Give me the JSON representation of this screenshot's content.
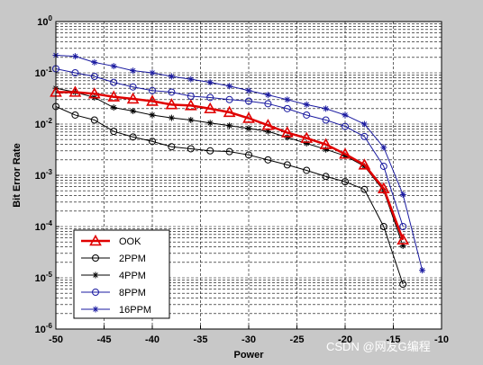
{
  "watermark": "CSDN @网友G编程",
  "chart_data": {
    "type": "line",
    "xlabel": "Power",
    "ylabel": "Bit Error Rate",
    "xlim": [
      -50,
      -10
    ],
    "ylim": [
      1e-06,
      1
    ],
    "y_scale": "log",
    "grid": "major solid, minor dashed",
    "legend_position": "bottom-left",
    "x_ticks": [
      -50,
      -45,
      -40,
      -35,
      -30,
      -25,
      -20,
      -15,
      -10
    ],
    "x_tick_labels": [
      "-50",
      "-45",
      "-40",
      "-35",
      "-30",
      "-25",
      "-20",
      "-15",
      "-10"
    ],
    "y_ticks": [
      {
        "value": 1,
        "base": "10",
        "exp": "0"
      },
      {
        "value": 0.1,
        "base": "10",
        "exp": "-1"
      },
      {
        "value": 0.01,
        "base": "10",
        "exp": "-2"
      },
      {
        "value": 0.001,
        "base": "10",
        "exp": "-3"
      },
      {
        "value": 0.0001,
        "base": "10",
        "exp": "-4"
      },
      {
        "value": 1e-05,
        "base": "10",
        "exp": "-5"
      },
      {
        "value": 1e-06,
        "base": "10",
        "exp": "-6"
      }
    ],
    "series": [
      {
        "name": "OOK",
        "color": "#e00000",
        "marker": "triangle",
        "line_width": 2.5,
        "x": [
          -50,
          -48,
          -46,
          -44,
          -42,
          -40,
          -38,
          -36,
          -34,
          -32,
          -30,
          -28,
          -26,
          -24,
          -22,
          -20,
          -18,
          -16,
          -14
        ],
        "y": [
          0.042,
          0.042,
          0.039,
          0.034,
          0.031,
          0.028,
          0.024,
          0.023,
          0.02,
          0.017,
          0.013,
          0.0095,
          0.0068,
          0.0053,
          0.004,
          0.0026,
          0.0016,
          0.00055,
          5.5e-05
        ]
      },
      {
        "name": "2PPM",
        "color": "#000000",
        "marker": "circle",
        "line_width": 1,
        "x": [
          -50,
          -48,
          -46,
          -44,
          -42,
          -40,
          -38,
          -36,
          -34,
          -32,
          -30,
          -28,
          -26,
          -24,
          -22,
          -20,
          -18,
          -16,
          -14
        ],
        "y": [
          0.022,
          0.015,
          0.012,
          0.0072,
          0.0056,
          0.0046,
          0.0036,
          0.0033,
          0.003,
          0.0029,
          0.0025,
          0.002,
          0.0016,
          0.00125,
          0.00095,
          0.00075,
          0.00053,
          0.0001,
          7.5e-06
        ]
      },
      {
        "name": "4PPM",
        "color": "#000000",
        "marker": "star",
        "line_width": 1,
        "x": [
          -50,
          -48,
          -46,
          -44,
          -42,
          -40,
          -38,
          -36,
          -34,
          -32,
          -30,
          -28,
          -26,
          -24,
          -22,
          -20,
          -18,
          -16,
          -14
        ],
        "y": [
          0.05,
          0.042,
          0.033,
          0.021,
          0.018,
          0.015,
          0.0132,
          0.012,
          0.0105,
          0.0093,
          0.0082,
          0.0072,
          0.0055,
          0.0042,
          0.0032,
          0.0024,
          0.0015,
          0.0005,
          4.2e-05
        ]
      },
      {
        "name": "8PPM",
        "color": "#1a1aa0",
        "marker": "circle",
        "line_width": 1,
        "x": [
          -50,
          -48,
          -46,
          -44,
          -42,
          -40,
          -38,
          -36,
          -34,
          -32,
          -30,
          -28,
          -26,
          -24,
          -22,
          -20,
          -18,
          -16,
          -14
        ],
        "y": [
          0.12,
          0.1,
          0.085,
          0.065,
          0.053,
          0.045,
          0.042,
          0.035,
          0.033,
          0.03,
          0.028,
          0.025,
          0.02,
          0.015,
          0.012,
          0.009,
          0.0057,
          0.0015,
          0.0001
        ]
      },
      {
        "name": "16PPM",
        "color": "#1a1aa0",
        "marker": "star",
        "line_width": 1,
        "x": [
          -50,
          -48,
          -46,
          -44,
          -42,
          -40,
          -38,
          -36,
          -34,
          -32,
          -30,
          -28,
          -26,
          -24,
          -22,
          -20,
          -18,
          -16,
          -14,
          -12
        ],
        "y": [
          0.22,
          0.21,
          0.16,
          0.135,
          0.11,
          0.1,
          0.085,
          0.075,
          0.065,
          0.055,
          0.045,
          0.037,
          0.03,
          0.024,
          0.02,
          0.015,
          0.01,
          0.0035,
          0.00042,
          1.4e-05
        ]
      }
    ]
  }
}
